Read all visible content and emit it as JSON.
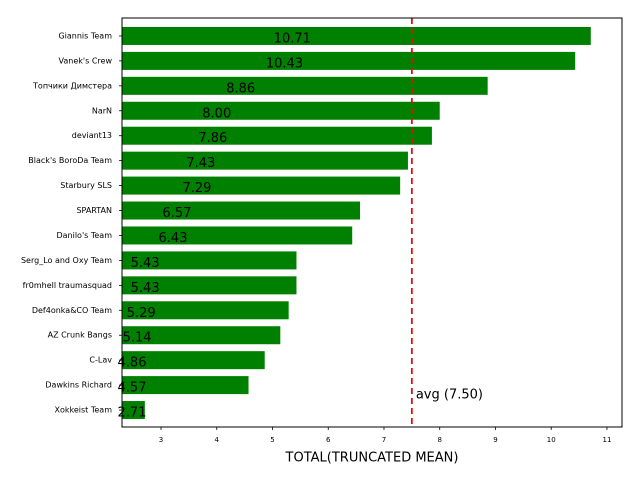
{
  "chart_data": {
    "type": "barh",
    "categories": [
      "Giannis Team",
      "Vanek's Crew",
      "Топчики Димстера",
      "NarN",
      "deviant13",
      "Black's BoroDa Team",
      "Starbury SLS",
      "SPARTAN",
      "Danilo's Team",
      "Serg_Lo and Oxy Team",
      "fr0mhell traumasquad",
      "Def4onka&CO Team",
      "AZ Crunk Bangs",
      "C-Lav",
      "Dawkins Richard",
      "Xokkeist Team"
    ],
    "values": [
      10.71,
      10.43,
      8.86,
      8,
      7.86,
      7.43,
      7.29,
      6.57,
      6.43,
      5.43,
      5.43,
      5.29,
      5.14,
      4.86,
      4.57,
      2.71
    ],
    "value_labels": [
      "10.71",
      "10.43",
      "8.86",
      "8.00",
      "7.86",
      "7.43",
      "7.29",
      "6.57",
      "6.43",
      "5.43",
      "5.43",
      "5.29",
      "5.14",
      "4.86",
      "4.57",
      "2.71"
    ],
    "color": "#008000",
    "xlabel": "TOTAL(TRUNCATED MEAN)",
    "xlim": [
      2.3,
      11.27
    ],
    "xticks": [
      3,
      4,
      5,
      6,
      7,
      8,
      9,
      10,
      11
    ],
    "reference_line": {
      "value": 7.5,
      "label": "avg (7.50)",
      "color": "#dd1111"
    }
  }
}
